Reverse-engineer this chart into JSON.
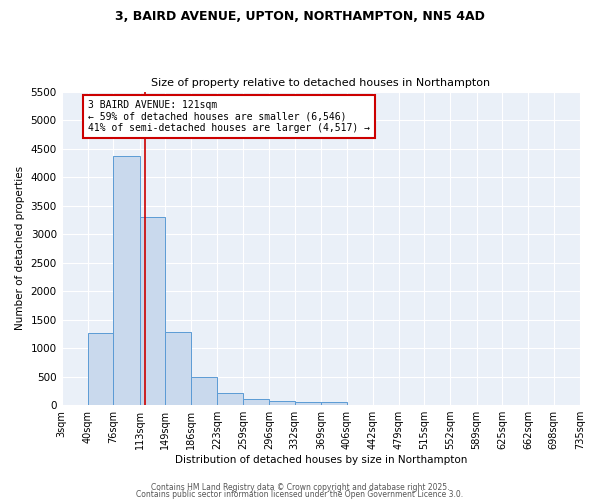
{
  "title_line1": "3, BAIRD AVENUE, UPTON, NORTHAMPTON, NN5 4AD",
  "title_line2": "Size of property relative to detached houses in Northampton",
  "xlabel": "Distribution of detached houses by size in Northampton",
  "ylabel": "Number of detached properties",
  "bin_edges": [
    3,
    40,
    76,
    113,
    149,
    186,
    223,
    259,
    296,
    332,
    369,
    406,
    442,
    479,
    515,
    552,
    589,
    625,
    662,
    698,
    735
  ],
  "bar_heights": [
    0,
    1270,
    4370,
    3300,
    1280,
    500,
    210,
    100,
    70,
    60,
    55,
    0,
    0,
    0,
    0,
    0,
    0,
    0,
    0,
    0
  ],
  "bar_color": "#c9d9ed",
  "bar_edge_color": "#5b9bd5",
  "property_line_x": 121,
  "property_line_color": "#cc0000",
  "annotation_text": "3 BAIRD AVENUE: 121sqm\n← 59% of detached houses are smaller (6,546)\n41% of semi-detached houses are larger (4,517) →",
  "annotation_box_color": "#cc0000",
  "annotation_text_color": "#000000",
  "ylim": [
    0,
    5500
  ],
  "yticks": [
    0,
    500,
    1000,
    1500,
    2000,
    2500,
    3000,
    3500,
    4000,
    4500,
    5000,
    5500
  ],
  "background_color": "#eaf0f8",
  "grid_color": "#ffffff",
  "footer_line1": "Contains HM Land Registry data © Crown copyright and database right 2025.",
  "footer_line2": "Contains public sector information licensed under the Open Government Licence 3.0.",
  "fig_width": 6.0,
  "fig_height": 5.0
}
